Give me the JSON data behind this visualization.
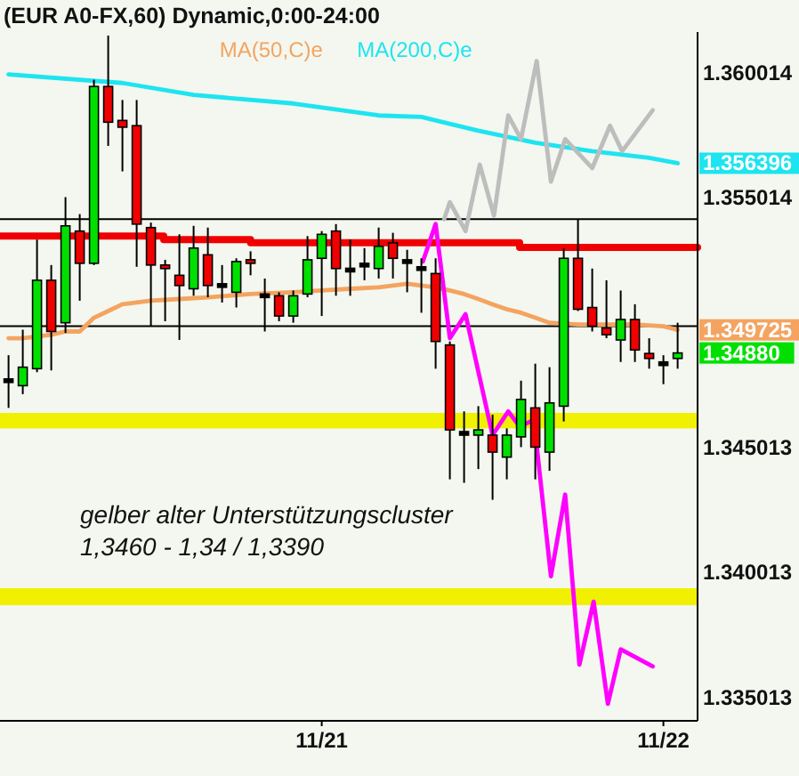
{
  "chart_data": {
    "type": "candlestick",
    "title": "(EUR A0-FX,60) Dynamic,0:00-24:00",
    "x": [
      "--11-20T02:00",
      "--11-20T03:00",
      "--11-20T04:00",
      "--11-20T05:00",
      "--11-20T06:00",
      "--11-20T07:00",
      "--11-20T08:00",
      "--11-20T09:00",
      "--11-20T10:00",
      "--11-20T11:00",
      "--11-20T12:00",
      "--11-20T13:00",
      "--11-20T14:00",
      "--11-20T15:00",
      "--11-20T16:00",
      "--11-20T17:00",
      "--11-20T18:00",
      "--11-20T19:00",
      "--11-20T20:00",
      "--11-20T21:00",
      "--11-20T22:00",
      "--11-20T23:00",
      "--11-21T00:00",
      "--11-21T01:00",
      "--11-21T02:00",
      "--11-21T03:00",
      "--11-21T04:00",
      "--11-21T05:00",
      "--11-21T06:00",
      "--11-21T07:00",
      "--11-21T08:00",
      "--11-21T09:00",
      "--11-21T10:00",
      "--11-21T11:00",
      "--11-21T12:00",
      "--11-21T13:00",
      "--11-21T14:00",
      "--11-21T15:00",
      "--11-21T16:00",
      "--11-21T17:00",
      "--11-21T18:00",
      "--11-21T19:00",
      "--11-21T20:00",
      "--11-21T21:00",
      "--11-21T22:00",
      "--11-21T23:00",
      "--11-22T00:00",
      "--11-22T01:00"
    ],
    "ohlc": [
      [
        1.34769,
        1.34871,
        1.3466,
        1.34769
      ],
      [
        1.34749,
        1.34973,
        1.34715,
        1.34823
      ],
      [
        1.34817,
        1.35334,
        1.34803,
        1.35171
      ],
      [
        1.35171,
        1.35232,
        1.3481,
        1.34966
      ],
      [
        1.35001,
        1.35504,
        1.3496,
        1.35389
      ],
      [
        1.35368,
        1.35436,
        1.35089,
        1.35239
      ],
      [
        1.35239,
        1.35974,
        1.35232,
        1.35947
      ],
      [
        1.35947,
        1.36151,
        1.35709,
        1.35804
      ],
      [
        1.35811,
        1.35893,
        1.35607,
        1.35784
      ],
      [
        1.3579,
        1.35893,
        1.35225,
        1.35396
      ],
      [
        1.35382,
        1.35402,
        1.34987,
        1.35232
      ],
      [
        1.35232,
        1.35253,
        1.35007,
        1.35218
      ],
      [
        1.35191,
        1.35355,
        1.34932,
        1.3515
      ],
      [
        1.35137,
        1.35389,
        1.35109,
        1.353
      ],
      [
        1.35273,
        1.35382,
        1.35103,
        1.3515
      ],
      [
        1.3515,
        1.35232,
        1.35082,
        1.3515
      ],
      [
        1.35123,
        1.35259,
        1.35062,
        1.35246
      ],
      [
        1.35253,
        1.35287,
        1.35191,
        1.35239
      ],
      [
        1.35109,
        1.35178,
        1.34966,
        1.35109
      ],
      [
        1.35109,
        1.35123,
        1.35007,
        1.35028
      ],
      [
        1.35028,
        1.3513,
        1.35001,
        1.35109
      ],
      [
        1.35116,
        1.35348,
        1.35103,
        1.35253
      ],
      [
        1.35259,
        1.35368,
        1.35028,
        1.35355
      ],
      [
        1.35368,
        1.35396,
        1.35109,
        1.35218
      ],
      [
        1.35212,
        1.35334,
        1.35109,
        1.35212
      ],
      [
        1.35232,
        1.353,
        1.35171,
        1.35232
      ],
      [
        1.35218,
        1.35382,
        1.35178,
        1.35307
      ],
      [
        1.35321,
        1.35361,
        1.35178,
        1.35259
      ],
      [
        1.35246,
        1.35293,
        1.35123,
        1.35246
      ],
      [
        1.35218,
        1.35259,
        1.35041,
        1.35218
      ],
      [
        1.35198,
        1.35259,
        1.34817,
        1.34926
      ],
      [
        1.34912,
        1.34926,
        1.34374,
        1.34572
      ],
      [
        1.34558,
        1.34646,
        1.3436,
        1.34558
      ],
      [
        1.34551,
        1.34667,
        1.34415,
        1.34572
      ],
      [
        1.34551,
        1.34633,
        1.34292,
        1.34483
      ],
      [
        1.34463,
        1.34578,
        1.34374,
        1.34551
      ],
      [
        1.34544,
        1.34769,
        1.34503,
        1.34694
      ],
      [
        1.3466,
        1.34837,
        1.34374,
        1.34503
      ],
      [
        1.34483,
        1.34823,
        1.34408,
        1.3468
      ],
      [
        1.34667,
        1.353,
        1.34606,
        1.35259
      ],
      [
        1.35259,
        1.35416,
        1.35048,
        1.35055
      ],
      [
        1.35062,
        1.35218,
        1.34966,
        1.34987
      ],
      [
        1.3498,
        1.35171,
        1.34939,
        1.34953
      ],
      [
        1.34932,
        1.3513,
        1.34844,
        1.35014
      ],
      [
        1.35014,
        1.35075,
        1.34844,
        1.34892
      ],
      [
        1.34878,
        1.34939,
        1.34817,
        1.34858
      ],
      [
        1.34837,
        1.34871,
        1.34755,
        1.34837
      ],
      [
        1.34858,
        1.35001,
        1.34817,
        1.3488
      ]
    ],
    "colors": [
      "#000000",
      "#00e000",
      "#00e000",
      "#f00000",
      "#00e000",
      "#f00000",
      "#00e000",
      "#f00000",
      "#f00000",
      "#f00000",
      "#f00000",
      "#f00000",
      "#f00000",
      "#00e000",
      "#f00000",
      "#000000",
      "#00e000",
      "#f00000",
      "#000000",
      "#f00000",
      "#00e000",
      "#00e000",
      "#00e000",
      "#f00000",
      "#000000",
      "#000000",
      "#00e000",
      "#f00000",
      "#000000",
      "#000000",
      "#f00000",
      "#f00000",
      "#000000",
      "#00e000",
      "#f00000",
      "#00e000",
      "#00e000",
      "#f00000",
      "#00e000",
      "#00e000",
      "#f00000",
      "#f00000",
      "#f00000",
      "#00e000",
      "#f00000",
      "#f00000",
      "#000000",
      "#00e000"
    ],
    "value_labels": [
      null,
      null,
      null,
      null,
      null,
      null,
      null,
      null,
      null,
      null,
      null,
      null,
      null,
      null,
      null,
      null,
      null,
      null,
      null,
      null,
      null,
      null,
      null,
      null,
      null,
      null,
      null,
      null,
      null,
      null,
      null,
      null,
      null,
      null,
      null,
      null,
      null,
      null,
      null,
      null,
      null,
      null,
      null,
      null,
      null,
      null,
      null,
      "1.34880"
    ],
    "series": [
      {
        "type": "line",
        "name": "MA(50,C)e",
        "color": "#f4a460",
        "x": [
          "--11-20T02:00",
          "--11-20T03:00",
          "--11-20T04:00",
          "--11-20T05:00",
          "--11-20T06:00",
          "--11-20T07:00",
          "--11-20T08:00",
          "--11-20T09:00",
          "--11-20T10:00",
          "--11-20T11:00",
          "--11-20T12:00",
          "--11-20T14:00",
          "--11-20T16:00",
          "--11-20T19:00",
          "--11-20T22:00",
          "--11-21T00:00",
          "--11-21T02:00",
          "--11-21T04:00",
          "--11-21T06:00",
          "--11-21T07:00",
          "--11-21T08:00",
          "--11-21T09:00",
          "--11-21T10:00",
          "--11-21T11:00",
          "--11-21T12:00",
          "--11-21T13:00",
          "--11-21T14:00",
          "--11-21T15:00",
          "--11-21T16:00",
          "--11-21T18:00",
          "--11-21T22:00",
          "--11-22T00:00",
          "--11-22T01:00"
        ],
        "values": [
          1.34939,
          1.34939,
          1.34946,
          1.34953,
          1.34966,
          1.34966,
          1.35021,
          1.35048,
          1.35075,
          1.35082,
          1.35089,
          1.35096,
          1.35103,
          1.35116,
          1.35123,
          1.3513,
          1.35137,
          1.35143,
          1.35157,
          1.3515,
          1.35143,
          1.3513,
          1.35116,
          1.35096,
          1.35075,
          1.35055,
          1.35041,
          1.35021,
          1.35001,
          1.34994,
          1.34994,
          1.34987,
          1.349725
        ],
        "value_labels": [
          null,
          null,
          null,
          null,
          null,
          null,
          null,
          null,
          null,
          null,
          null,
          null,
          null,
          null,
          null,
          null,
          null,
          null,
          null,
          null,
          null,
          null,
          null,
          null,
          null,
          null,
          null,
          null,
          null,
          null,
          null,
          null,
          "1.349725"
        ]
      },
      {
        "type": "line",
        "name": "MA(200,C)e",
        "color": "#1ee4f0",
        "x": [
          "--11-20T02:00",
          "--11-20T10:00",
          "--11-20T15:00",
          "--11-20T22:00",
          "--11-21T04:00",
          "--11-21T07:00",
          "--11-21T11:00",
          "--11-21T15:00",
          "--11-21T19:00",
          "--11-21T23:00",
          "--11-22T01:00"
        ],
        "values": [
          1.35995,
          1.35961,
          1.35913,
          1.35879,
          1.35831,
          1.35825,
          1.3577,
          1.35722,
          1.35688,
          1.35661,
          1.356396
        ],
        "value_labels": [
          null,
          null,
          null,
          null,
          null,
          null,
          null,
          null,
          null,
          null,
          "1.356396"
        ]
      },
      {
        "type": "step",
        "color": "#f00000",
        "x": [
          "--11-20T01:24",
          "--11-20T12:54",
          "--11-20T19:00",
          "--11-21T13:54",
          "--11-22T02:24"
        ],
        "values": [
          1.35348,
          1.35334,
          1.35321,
          1.35303,
          1.35303
        ]
      },
      {
        "type": "line",
        "color": "#bdbdbd",
        "x": [
          "--11-21T08:36",
          "--11-21T09:00",
          "--11-21T10:06",
          "--11-21T11:06",
          "--11-21T12:06",
          "--11-21T13:06",
          "--11-21T14:00",
          "--11-21T15:06",
          "--11-21T16:06",
          "--11-21T17:06",
          "--11-21T19:00",
          "--11-21T20:15",
          "--11-21T21:06",
          "--11-21T23:15"
        ],
        "values": [
          1.35416,
          1.35484,
          1.35368,
          1.35634,
          1.3543,
          1.35831,
          1.35736,
          1.36049,
          1.35566,
          1.35736,
          1.3562,
          1.3579,
          1.35688,
          1.35852
        ]
      },
      {
        "type": "line",
        "color": "#ff00ff",
        "x": [
          "--11-21T07:06",
          "--11-21T08:00",
          "--11-21T09:00",
          "--11-21T10:06",
          "--11-21T12:00",
          "--11-21T13:06",
          "--11-21T13:54",
          "--11-21T14:54",
          "--11-21T16:06",
          "--11-21T17:06",
          "--11-21T18:06",
          "--11-21T19:06",
          "--11-21T20:06",
          "--11-21T21:00",
          "--11-21T23:15"
        ],
        "values": [
          1.35246,
          1.35396,
          1.34939,
          1.35035,
          1.34551,
          1.34646,
          1.34585,
          1.34612,
          1.33986,
          1.34313,
          1.33632,
          1.33884,
          1.33475,
          1.33693,
          1.33625
        ]
      }
    ],
    "xlim": [
      "--11-20T01:24",
      "--11-22T02:24"
    ],
    "xticks": [
      {
        "value": "--11-21",
        "label": "11/21"
      },
      {
        "value": "--11-22",
        "label": "11/22"
      }
    ],
    "ylim": [
      1.33407,
      1.36165
    ],
    "yticks": [
      1.360014,
      1.355014,
      1.345013,
      1.340013,
      1.335013
    ],
    "ref_lines": [
      {
        "axis": "y",
        "value": 1.35416,
        "color": "#000000"
      },
      {
        "axis": "y",
        "value": 1.34987,
        "color": "#000000"
      }
    ],
    "bands": [
      {
        "axis": "y",
        "from": 1.34578,
        "to": 1.3464,
        "color": "#f0f000"
      },
      {
        "axis": "y",
        "from": 1.3387,
        "to": 1.33938,
        "color": "#f0f000"
      }
    ],
    "annotations": [
      "gelber alter Unterstützungscluster",
      "1,3460 - 1,34 / 1,3390"
    ],
    "legend": "top"
  }
}
